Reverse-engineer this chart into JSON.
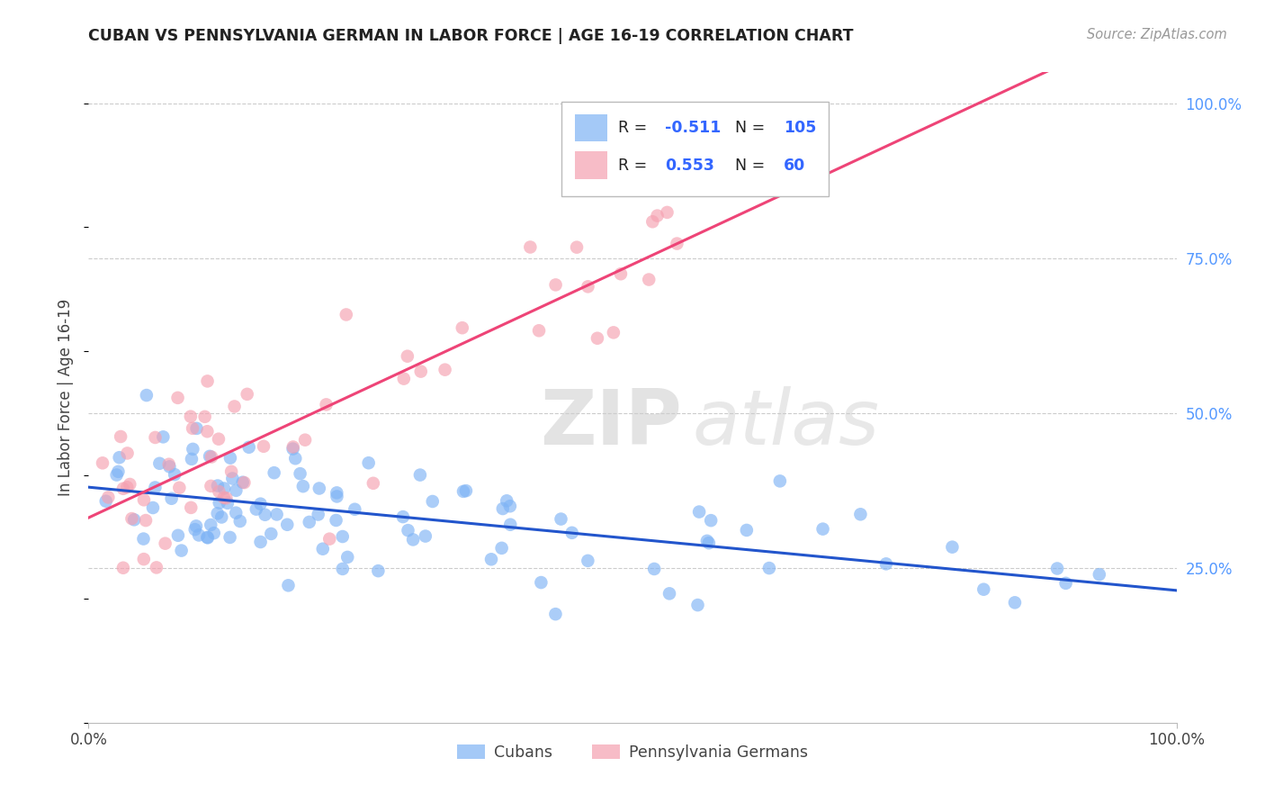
{
  "title": "CUBAN VS PENNSYLVANIA GERMAN IN LABOR FORCE | AGE 16-19 CORRELATION CHART",
  "source": "Source: ZipAtlas.com",
  "ylabel": "In Labor Force | Age 16-19",
  "blue_color": "#7EB3F5",
  "pink_color": "#F5A0B0",
  "blue_line_color": "#2255CC",
  "pink_line_color": "#EE4477",
  "blue_label": "Cubans",
  "pink_label": "Pennsylvania Germans",
  "watermark_zip": "ZIP",
  "watermark_atlas": "atlas",
  "legend_blue_r": "-0.511",
  "legend_blue_n": "105",
  "legend_pink_r": "0.553",
  "legend_pink_n": "60",
  "right_tick_color": "#5599FF",
  "title_color": "#222222",
  "source_color": "#999999"
}
